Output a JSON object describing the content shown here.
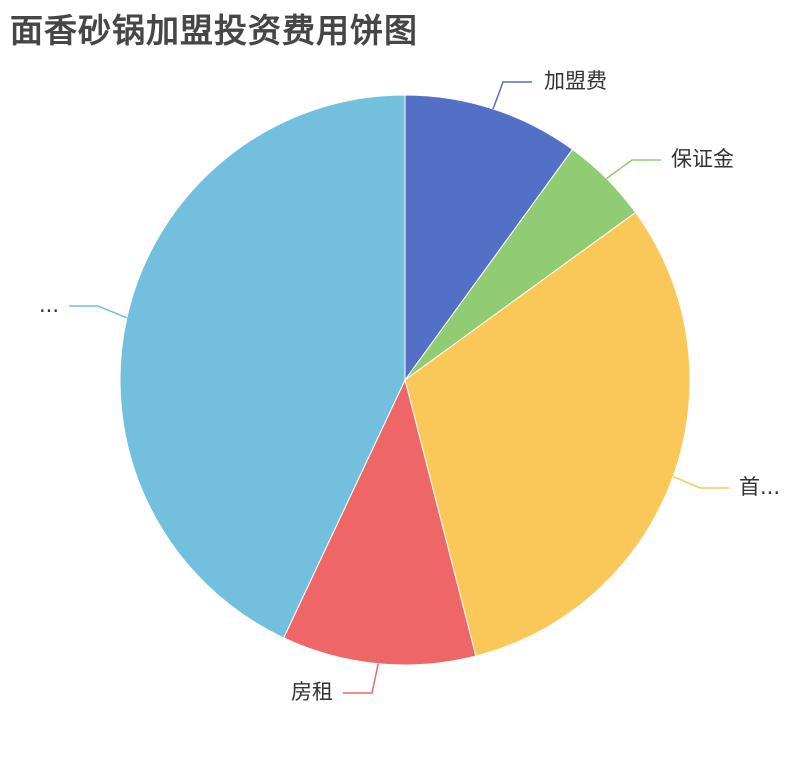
{
  "chart_data": {
    "type": "pie",
    "title": "面香砂锅加盟投资费用饼图",
    "slices": [
      {
        "label": "加盟费",
        "value": 10,
        "color": "#5470c6"
      },
      {
        "label": "保证金",
        "value": 5,
        "color": "#91cc75"
      },
      {
        "label": "首...",
        "value": 31,
        "color": "#fac858"
      },
      {
        "label": "房租",
        "value": 11,
        "color": "#ee6666"
      },
      {
        "label": "...",
        "value": 43,
        "color": "#73c0de"
      }
    ],
    "legend": "none",
    "label_position": "outside-with-leader-lines"
  }
}
